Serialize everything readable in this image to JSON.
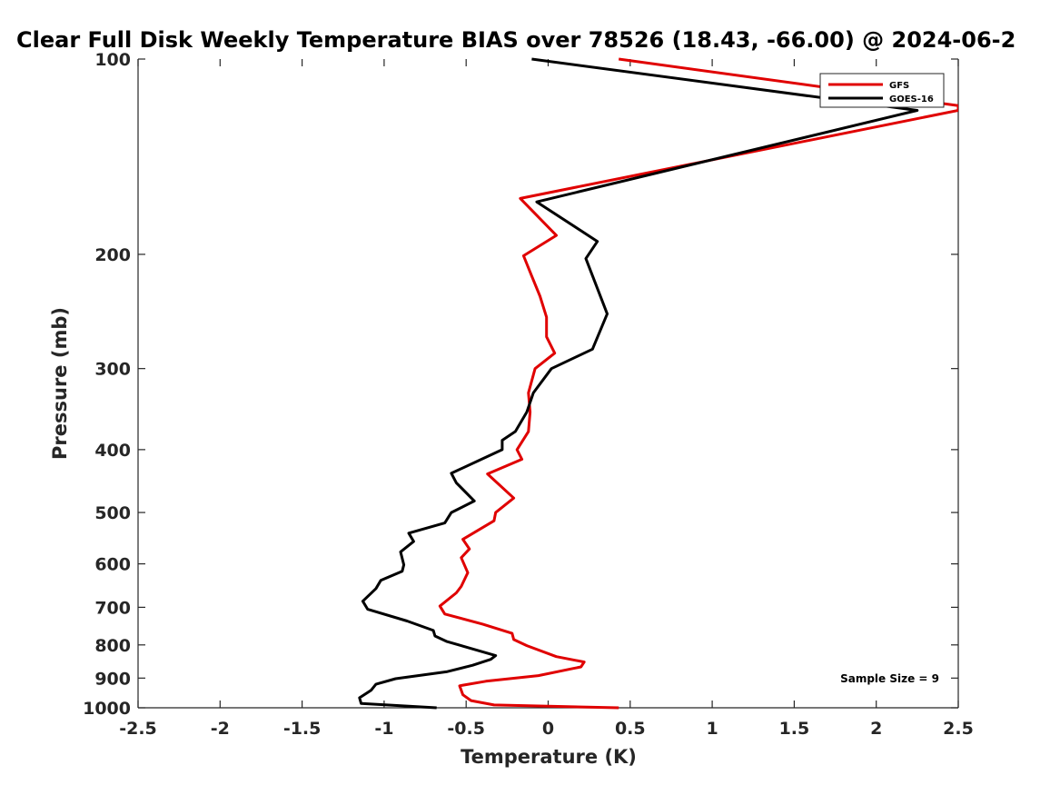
{
  "chart_data": {
    "type": "line",
    "title": "Clear Full Disk Weekly Temperature BIAS over 78526 (18.43, -66.00) @ 2024-06-2",
    "xlabel": "Temperature (K)",
    "ylabel": "Pressure (mb)",
    "xlim": [
      -2.5,
      2.5
    ],
    "ylim": [
      100,
      1000
    ],
    "y_scale": "log",
    "y_reversed": true,
    "x_ticks": [
      -2.5,
      -2,
      -1.5,
      -1,
      -0.5,
      0,
      0.5,
      1,
      1.5,
      2,
      2.5
    ],
    "x_tick_labels": [
      "-2.5",
      "-2",
      "-1.5",
      "-1",
      "-0.5",
      "0",
      "0.5",
      "1",
      "1.5",
      "2",
      "2.5"
    ],
    "y_ticks": [
      100,
      200,
      300,
      400,
      500,
      600,
      700,
      800,
      900,
      1000
    ],
    "y_tick_labels": [
      "100",
      "200",
      "300",
      "400",
      "500",
      "600",
      "700",
      "800",
      "900",
      "1000"
    ],
    "grid": false,
    "legend_position": "top-right",
    "series": [
      {
        "name": "GFS",
        "color": "#e00000",
        "points": [
          [
            0.43,
            100
          ],
          [
            2.5,
            118
          ],
          [
            2.5,
            120
          ],
          [
            -0.17,
            164
          ],
          [
            0.05,
            187
          ],
          [
            -0.15,
            201
          ],
          [
            -0.1,
            216
          ],
          [
            -0.05,
            232
          ],
          [
            -0.01,
            250
          ],
          [
            -0.01,
            268
          ],
          [
            0.04,
            284
          ],
          [
            -0.08,
            300
          ],
          [
            -0.12,
            327
          ],
          [
            -0.11,
            350
          ],
          [
            -0.12,
            375
          ],
          [
            -0.19,
            400
          ],
          [
            -0.16,
            414
          ],
          [
            -0.37,
            436
          ],
          [
            -0.21,
            475
          ],
          [
            -0.32,
            500
          ],
          [
            -0.33,
            515
          ],
          [
            -0.52,
            550
          ],
          [
            -0.48,
            569
          ],
          [
            -0.53,
            587
          ],
          [
            -0.49,
            619
          ],
          [
            -0.53,
            650
          ],
          [
            -0.56,
            665
          ],
          [
            -0.66,
            697
          ],
          [
            -0.63,
            717
          ],
          [
            -0.4,
            743
          ],
          [
            -0.22,
            768
          ],
          [
            -0.21,
            785
          ],
          [
            -0.13,
            802
          ],
          [
            0.05,
            834
          ],
          [
            0.22,
            850
          ],
          [
            0.2,
            865
          ],
          [
            0.15,
            870
          ],
          [
            -0.06,
            892
          ],
          [
            -0.38,
            910
          ],
          [
            -0.54,
            925
          ],
          [
            -0.52,
            955
          ],
          [
            -0.47,
            975
          ],
          [
            -0.33,
            990
          ],
          [
            0.43,
            1000
          ]
        ]
      },
      {
        "name": "GOES-16",
        "color": "#000000",
        "points": [
          [
            -0.1,
            100
          ],
          [
            2.25,
            120
          ],
          [
            -0.07,
            166
          ],
          [
            0.3,
            191
          ],
          [
            0.23,
            203
          ],
          [
            0.36,
            247
          ],
          [
            0.27,
            280
          ],
          [
            0.02,
            300
          ],
          [
            -0.09,
            327
          ],
          [
            -0.13,
            350
          ],
          [
            -0.2,
            375
          ],
          [
            -0.28,
            387
          ],
          [
            -0.28,
            400
          ],
          [
            -0.59,
            435
          ],
          [
            -0.56,
            450
          ],
          [
            -0.45,
            480
          ],
          [
            -0.59,
            500
          ],
          [
            -0.63,
            519
          ],
          [
            -0.85,
            538
          ],
          [
            -0.82,
            554
          ],
          [
            -0.9,
            575
          ],
          [
            -0.88,
            602
          ],
          [
            -0.89,
            616
          ],
          [
            -1.02,
            636
          ],
          [
            -1.05,
            655
          ],
          [
            -1.13,
            685
          ],
          [
            -1.1,
            705
          ],
          [
            -0.86,
            735
          ],
          [
            -0.7,
            760
          ],
          [
            -0.69,
            775
          ],
          [
            -0.62,
            790
          ],
          [
            -0.32,
            831
          ],
          [
            -0.35,
            842
          ],
          [
            -0.46,
            860
          ],
          [
            -0.62,
            880
          ],
          [
            -0.93,
            902
          ],
          [
            -1.05,
            920
          ],
          [
            -1.08,
            940
          ],
          [
            -1.15,
            965
          ],
          [
            -1.14,
            985
          ],
          [
            -0.68,
            1000
          ]
        ]
      }
    ],
    "annotation": "Sample Size = 9"
  }
}
